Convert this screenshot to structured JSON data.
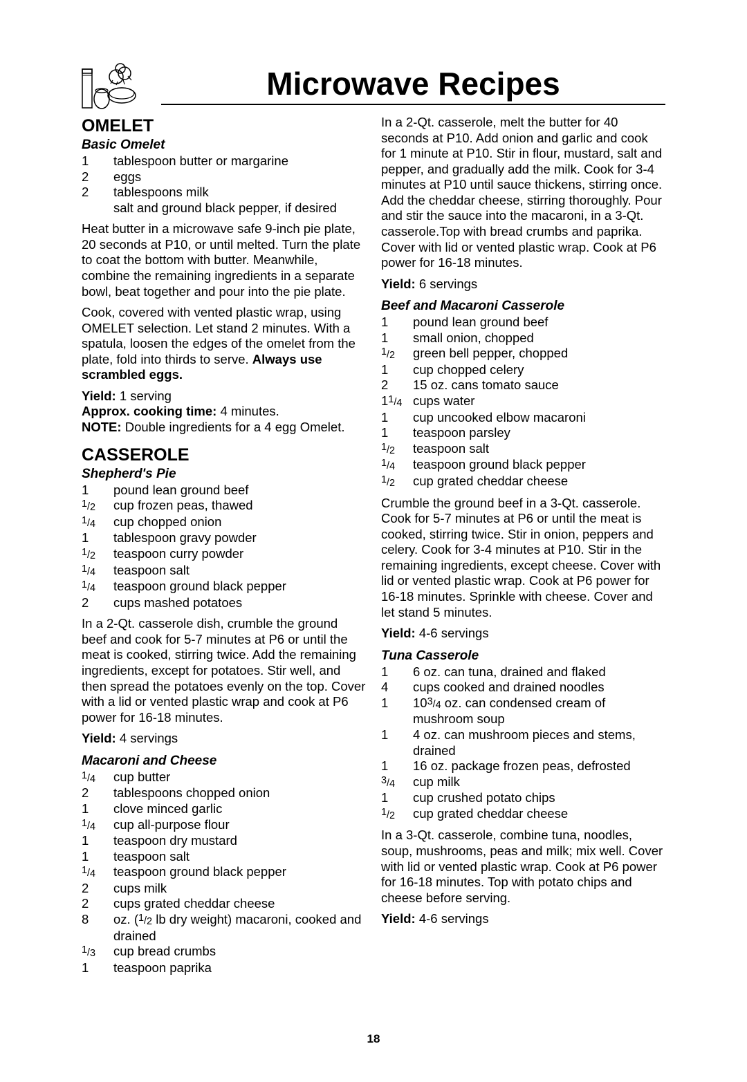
{
  "page": {
    "chapter_title": "Microwave Recipes",
    "page_number": "18"
  },
  "left": {
    "omelet": {
      "section": "OMELET",
      "recipe": {
        "title": "Basic Omelet",
        "ingredients": [
          {
            "qty": "1",
            "desc": "tablespoon butter or margarine"
          },
          {
            "qty": "2",
            "desc": "eggs"
          },
          {
            "qty": "2",
            "desc": "tablespoons milk"
          },
          {
            "qty": "",
            "desc": "salt and ground black pepper, if desired"
          }
        ],
        "para1": "Heat butter in a microwave safe 9-inch pie plate, 20 seconds at P10, or until melted. Turn the plate to coat the bottom with butter. Meanwhile, combine the remaining ingredients in a separate bowl, beat together and pour into the pie plate.",
        "para2a": "Cook, covered with vented plastic wrap, using OMELET selection. Let stand 2 minutes. With a spatula, loosen the edges of the omelet from the plate, fold into thirds to serve. ",
        "para2b": "Always use scrambled eggs.",
        "yield_label": "Yield: ",
        "yield_val": "1 serving",
        "approx_label": "Approx. cooking time: ",
        "approx_val": "4 minutes.",
        "note_label": "NOTE: ",
        "note_val": "Double ingredients for a 4 egg Omelet."
      }
    },
    "casserole": {
      "section": "CASSEROLE",
      "shepherds": {
        "title": "Shepherd's Pie",
        "ingredients": [
          {
            "qty": "1",
            "desc": "pound lean ground beef"
          },
          {
            "qty_frac": {
              "n": "1",
              "d": "2"
            },
            "desc": "cup frozen peas, thawed"
          },
          {
            "qty_frac": {
              "n": "1",
              "d": "4"
            },
            "desc": "cup chopped onion"
          },
          {
            "qty": "1",
            "desc": "tablespoon gravy powder"
          },
          {
            "qty_frac": {
              "n": "1",
              "d": "2"
            },
            "desc": "teaspoon curry powder"
          },
          {
            "qty_frac": {
              "n": "1",
              "d": "4"
            },
            "desc": "teaspoon salt"
          },
          {
            "qty_frac": {
              "n": "1",
              "d": "4"
            },
            "desc": "teaspoon ground black pepper"
          },
          {
            "qty": "2",
            "desc": "cups mashed potatoes"
          }
        ],
        "body": "In a 2-Qt. casserole dish, crumble the ground beef and cook for 5-7 minutes at P6 or until the meat is cooked, stirring twice. Add the remaining ingredients, except for potatoes. Stir well, and then spread the potatoes evenly on the top. Cover with a lid or vented plastic wrap and cook at P6 power for 16-18 minutes.",
        "yield_label": "Yield: ",
        "yield_val": "4 servings"
      },
      "mac": {
        "title": "Macaroni and Cheese",
        "ingredients": [
          {
            "qty_frac": {
              "n": "1",
              "d": "4"
            },
            "desc": "cup butter"
          },
          {
            "qty": "2",
            "desc": "tablespoons chopped onion"
          },
          {
            "qty": "1",
            "desc": "clove minced garlic"
          },
          {
            "qty_frac": {
              "n": "1",
              "d": "4"
            },
            "desc": "cup all-purpose flour"
          },
          {
            "qty": "1",
            "desc": "teaspoon dry mustard"
          },
          {
            "qty": "1",
            "desc": "teaspoon salt"
          },
          {
            "qty_frac": {
              "n": "1",
              "d": "4"
            },
            "desc": "teaspoon ground black pepper"
          },
          {
            "qty": "2",
            "desc": "cups milk"
          },
          {
            "qty": "2",
            "desc": "cups grated cheddar cheese"
          },
          {
            "qty": "8",
            "desc_pre": "oz. (",
            "desc_frac": {
              "n": "1",
              "d": "2"
            },
            "desc_post": " lb dry weight) macaroni, cooked and drained"
          },
          {
            "qty_frac": {
              "n": "1",
              "d": "3"
            },
            "desc": "cup bread crumbs"
          },
          {
            "qty": "1",
            "desc": "teaspoon paprika"
          }
        ]
      }
    }
  },
  "right": {
    "mac_body": "In a 2-Qt. casserole, melt the butter for 40 seconds at P10. Add onion and garlic and cook for 1 minute at P10. Stir in flour, mustard, salt and pepper, and gradually add the milk. Cook for 3-4 minutes at P10 until sauce thickens, stirring once. Add the cheddar cheese, stirring thoroughly. Pour and stir the sauce into the macaroni, in a 3-Qt. casserole.Top with bread crumbs and paprika. Cover with lid or vented plastic wrap. Cook at P6 power for 16-18 minutes.",
    "mac_yield_label": "Yield: ",
    "mac_yield_val": "6 servings",
    "beef": {
      "title": "Beef and Macaroni Casserole",
      "ingredients": [
        {
          "qty": "1",
          "desc": "pound lean ground beef"
        },
        {
          "qty": "1",
          "desc": "small onion, chopped"
        },
        {
          "qty_frac": {
            "n": "1",
            "d": "2"
          },
          "desc": "green bell pepper, chopped"
        },
        {
          "qty": "1",
          "desc": "cup chopped celery"
        },
        {
          "qty": "2",
          "desc": "15 oz. cans tomato sauce"
        },
        {
          "qty_whole": "1",
          "qty_frac": {
            "n": "1",
            "d": "4"
          },
          "desc": "cups water"
        },
        {
          "qty": "1",
          "desc": "cup uncooked elbow macaroni"
        },
        {
          "qty": "1",
          "desc": "teaspoon parsley"
        },
        {
          "qty_frac": {
            "n": "1",
            "d": "2"
          },
          "desc": "teaspoon salt"
        },
        {
          "qty_frac": {
            "n": "1",
            "d": "4"
          },
          "desc": "teaspoon ground black pepper"
        },
        {
          "qty_frac": {
            "n": "1",
            "d": "2"
          },
          "desc": "cup grated cheddar cheese"
        }
      ],
      "body": "Crumble the ground beef in a 3-Qt. casserole. Cook for 5-7 minutes at P6 or until the meat is cooked, stirring twice. Stir in onion, peppers and celery. Cook for 3-4 minutes at P10. Stir in the remaining ingredients, except cheese. Cover with lid or vented plastic wrap. Cook at P6 power for 16-18 minutes. Sprinkle with cheese. Cover and let stand 5 minutes.",
      "yield_label": "Yield: ",
      "yield_val": "4-6 servings"
    },
    "tuna": {
      "title": "Tuna Casserole",
      "ingredients": [
        {
          "qty": "1",
          "desc": "6 oz. can tuna, drained and flaked"
        },
        {
          "qty": "4",
          "desc": "cups cooked and drained noodles"
        },
        {
          "qty": "1",
          "desc_pre": "10",
          "desc_frac": {
            "n": "3",
            "d": "4"
          },
          "desc_post": " oz. can condensed cream of mushroom soup"
        },
        {
          "qty": "1",
          "desc": "4 oz. can mushroom pieces and stems, drained"
        },
        {
          "qty": "1",
          "desc": "16 oz. package frozen peas, defrosted"
        },
        {
          "qty_frac": {
            "n": "3",
            "d": "4"
          },
          "desc": "cup milk"
        },
        {
          "qty": "1",
          "desc": "cup crushed potato chips"
        },
        {
          "qty_frac": {
            "n": "1",
            "d": "2"
          },
          "desc": "cup grated cheddar cheese"
        }
      ],
      "body": "In a 3-Qt. casserole, combine tuna, noodles, soup, mushrooms, peas and milk; mix well. Cover with lid or vented plastic wrap. Cook at P6 power for 16-18 minutes. Top with potato chips and cheese before serving.",
      "yield_label": "Yield: ",
      "yield_val": "4-6 servings"
    }
  }
}
